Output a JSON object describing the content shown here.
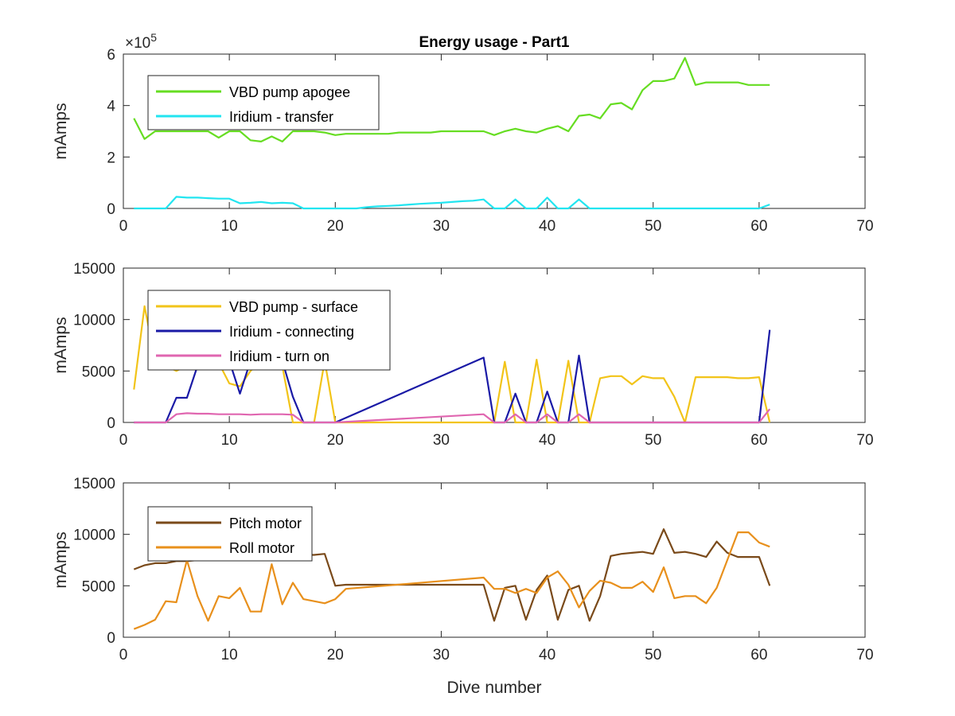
{
  "figure": {
    "background": "#ffffff"
  },
  "chart_data": [
    {
      "type": "line",
      "title": "Energy usage - Part1",
      "xlabel": "",
      "ylabel": "mAmps",
      "xlim": [
        0,
        70
      ],
      "ylim": [
        0,
        6
      ],
      "y_exponent": "5",
      "xticks": [
        "0",
        "10",
        "20",
        "30",
        "40",
        "50",
        "60",
        "70"
      ],
      "yticks": [
        "0",
        "2",
        "4",
        "6"
      ],
      "legend_position": "top-left",
      "series": [
        {
          "name": "VBD pump apogee",
          "color": "#66dd22",
          "x": [
            1,
            2,
            3,
            4,
            5,
            6,
            7,
            8,
            9,
            10,
            11,
            12,
            13,
            14,
            15,
            16,
            17,
            18,
            19,
            20,
            21,
            22,
            23,
            24,
            25,
            26,
            27,
            28,
            29,
            30,
            31,
            32,
            33,
            34,
            35,
            36,
            37,
            38,
            39,
            40,
            41,
            42,
            43,
            44,
            45,
            46,
            47,
            48,
            49,
            50,
            51,
            52,
            53,
            54,
            55,
            56,
            57,
            58,
            59,
            60,
            61
          ],
          "y": [
            3.5,
            2.7,
            3.0,
            3.0,
            3.0,
            3.0,
            3.0,
            3.0,
            2.75,
            3.0,
            3.0,
            2.65,
            2.6,
            2.8,
            2.6,
            3.0,
            3.0,
            3.0,
            2.95,
            2.85,
            2.9,
            2.9,
            2.9,
            2.9,
            2.9,
            2.95,
            2.95,
            2.95,
            2.95,
            3.0,
            3.0,
            3.0,
            3.0,
            3.0,
            2.85,
            3.0,
            3.1,
            3.0,
            2.95,
            3.1,
            3.2,
            3.0,
            3.6,
            3.65,
            3.5,
            4.05,
            4.1,
            3.85,
            4.6,
            4.95,
            4.95,
            5.05,
            5.85,
            4.8,
            4.9,
            4.9,
            4.9,
            4.9,
            4.8,
            4.8,
            4.8
          ]
        },
        {
          "name": "Iridium - transfer",
          "color": "#22e5f0",
          "x": [
            1,
            2,
            3,
            4,
            5,
            6,
            7,
            8,
            9,
            10,
            11,
            12,
            13,
            14,
            15,
            16,
            17,
            18,
            19,
            20,
            21,
            22,
            23,
            24,
            25,
            26,
            27,
            28,
            29,
            30,
            31,
            32,
            33,
            34,
            35,
            36,
            37,
            38,
            39,
            40,
            41,
            42,
            43,
            44,
            45,
            46,
            47,
            48,
            49,
            50,
            51,
            52,
            53,
            54,
            55,
            56,
            57,
            58,
            59,
            60,
            61
          ],
          "y": [
            0,
            0,
            0,
            0,
            0.45,
            0.42,
            0.42,
            0.4,
            0.38,
            0.38,
            0.2,
            0.22,
            0.25,
            0.2,
            0.22,
            0.2,
            0,
            0,
            0,
            0,
            0,
            0,
            0.05,
            0.08,
            0.1,
            0.12,
            0.15,
            0.18,
            0.2,
            0.22,
            0.25,
            0.28,
            0.3,
            0.35,
            0,
            0,
            0.35,
            0,
            0,
            0.42,
            0,
            0,
            0.35,
            0,
            0,
            0,
            0,
            0,
            0,
            0,
            0,
            0,
            0,
            0,
            0,
            0,
            0,
            0,
            0,
            0,
            0.15
          ]
        }
      ]
    },
    {
      "type": "line",
      "title": "",
      "xlabel": "",
      "ylabel": "mAmps",
      "xlim": [
        0,
        70
      ],
      "ylim": [
        0,
        15000
      ],
      "xticks": [
        "0",
        "10",
        "20",
        "30",
        "40",
        "50",
        "60",
        "70"
      ],
      "yticks": [
        "0",
        "5000",
        "10000",
        "15000"
      ],
      "legend_position": "top-left",
      "series": [
        {
          "name": "VBD pump - surface",
          "color": "#f2c419",
          "x": [
            1,
            2,
            3,
            4,
            5,
            6,
            7,
            8,
            9,
            10,
            11,
            12,
            13,
            14,
            15,
            16,
            17,
            18,
            19,
            20,
            21,
            34,
            35,
            36,
            37,
            38,
            39,
            40,
            41,
            42,
            43,
            44,
            45,
            46,
            47,
            48,
            49,
            50,
            51,
            52,
            53,
            54,
            55,
            56,
            57,
            58,
            59,
            60,
            61
          ],
          "y": [
            3200,
            11300,
            6000,
            5500,
            5000,
            5500,
            6000,
            6000,
            5800,
            3800,
            3500,
            5000,
            6000,
            6000,
            5500,
            0,
            0,
            0,
            6000,
            0,
            0,
            0,
            0,
            5900,
            0,
            0,
            6100,
            0,
            0,
            6000,
            0,
            0,
            4300,
            4500,
            4500,
            3700,
            4500,
            4300,
            4300,
            2500,
            0,
            4400,
            4400,
            4400,
            4400,
            4300,
            4300,
            4400,
            0
          ]
        },
        {
          "name": "Iridium - connecting",
          "color": "#1a1aa6",
          "x": [
            1,
            2,
            3,
            4,
            5,
            6,
            7,
            8,
            9,
            10,
            11,
            12,
            13,
            14,
            15,
            16,
            17,
            18,
            19,
            20,
            34,
            35,
            36,
            37,
            38,
            39,
            40,
            41,
            42,
            43,
            44,
            45,
            46,
            47,
            48,
            49,
            50,
            51,
            52,
            53,
            54,
            55,
            56,
            57,
            58,
            59,
            60,
            61
          ],
          "y": [
            0,
            0,
            0,
            0,
            2400,
            2400,
            5500,
            6000,
            6000,
            6000,
            2800,
            6000,
            6000,
            6000,
            6000,
            2500,
            0,
            0,
            0,
            0,
            6300,
            0,
            0,
            2800,
            0,
            0,
            3000,
            0,
            0,
            6500,
            0,
            0,
            0,
            0,
            0,
            0,
            0,
            0,
            0,
            0,
            0,
            0,
            0,
            0,
            0,
            0,
            0,
            9000
          ]
        },
        {
          "name": "Iridium - turn on",
          "color": "#e066b0",
          "x": [
            1,
            2,
            3,
            4,
            5,
            6,
            7,
            8,
            9,
            10,
            11,
            12,
            13,
            14,
            15,
            16,
            17,
            18,
            19,
            20,
            34,
            35,
            36,
            37,
            38,
            39,
            40,
            41,
            42,
            43,
            44,
            45,
            46,
            47,
            48,
            49,
            50,
            51,
            52,
            53,
            54,
            55,
            56,
            57,
            58,
            59,
            60,
            61
          ],
          "y": [
            0,
            0,
            0,
            0,
            800,
            900,
            850,
            850,
            800,
            800,
            800,
            750,
            800,
            800,
            800,
            750,
            0,
            0,
            0,
            0,
            800,
            0,
            0,
            800,
            0,
            0,
            800,
            0,
            0,
            800,
            0,
            0,
            0,
            0,
            0,
            0,
            0,
            0,
            0,
            0,
            0,
            0,
            0,
            0,
            0,
            0,
            0,
            1300
          ]
        }
      ]
    },
    {
      "type": "line",
      "title": "",
      "xlabel": "Dive number",
      "ylabel": "mAmps",
      "xlim": [
        0,
        70
      ],
      "ylim": [
        0,
        15000
      ],
      "xticks": [
        "0",
        "10",
        "20",
        "30",
        "40",
        "50",
        "60",
        "70"
      ],
      "yticks": [
        "0",
        "5000",
        "10000",
        "15000"
      ],
      "legend_position": "top-left",
      "series": [
        {
          "name": "Pitch motor",
          "color": "#7a4a1a",
          "x": [
            1,
            2,
            3,
            4,
            5,
            6,
            7,
            8,
            9,
            10,
            11,
            12,
            13,
            14,
            15,
            16,
            17,
            18,
            19,
            20,
            21,
            34,
            35,
            36,
            37,
            38,
            39,
            40,
            41,
            42,
            43,
            44,
            45,
            46,
            47,
            48,
            49,
            50,
            51,
            52,
            53,
            54,
            55,
            56,
            57,
            58,
            59,
            60,
            61
          ],
          "y": [
            6600,
            7000,
            7200,
            7200,
            7400,
            7400,
            7500,
            7500,
            7800,
            7800,
            7800,
            8000,
            8000,
            8000,
            8000,
            8000,
            8000,
            8000,
            8100,
            5000,
            5100,
            5100,
            1600,
            4800,
            5000,
            1700,
            4600,
            6000,
            1700,
            4600,
            5000,
            1600,
            4000,
            7900,
            8100,
            8200,
            8300,
            8100,
            10500,
            8200,
            8300,
            8100,
            7800,
            9300,
            8200,
            7800,
            7800,
            7800,
            5000
          ]
        },
        {
          "name": "Roll motor",
          "color": "#e8901c",
          "x": [
            1,
            2,
            3,
            4,
            5,
            6,
            7,
            8,
            9,
            10,
            11,
            12,
            13,
            14,
            15,
            16,
            17,
            18,
            19,
            20,
            21,
            34,
            35,
            36,
            37,
            38,
            39,
            40,
            41,
            42,
            43,
            44,
            45,
            46,
            47,
            48,
            49,
            50,
            51,
            52,
            53,
            54,
            55,
            56,
            57,
            58,
            59,
            60,
            61
          ],
          "y": [
            800,
            1200,
            1700,
            3500,
            3400,
            7500,
            4000,
            1600,
            4000,
            3800,
            4800,
            2500,
            2500,
            7100,
            3200,
            5300,
            3700,
            3500,
            3300,
            3700,
            4700,
            5800,
            4700,
            4700,
            4300,
            4700,
            4300,
            5800,
            6400,
            5100,
            2900,
            4500,
            5500,
            5300,
            4800,
            4800,
            5400,
            4400,
            6800,
            3800,
            4000,
            4000,
            3300,
            4800,
            7500,
            10200,
            10200,
            9200,
            8800
          ]
        }
      ]
    }
  ]
}
